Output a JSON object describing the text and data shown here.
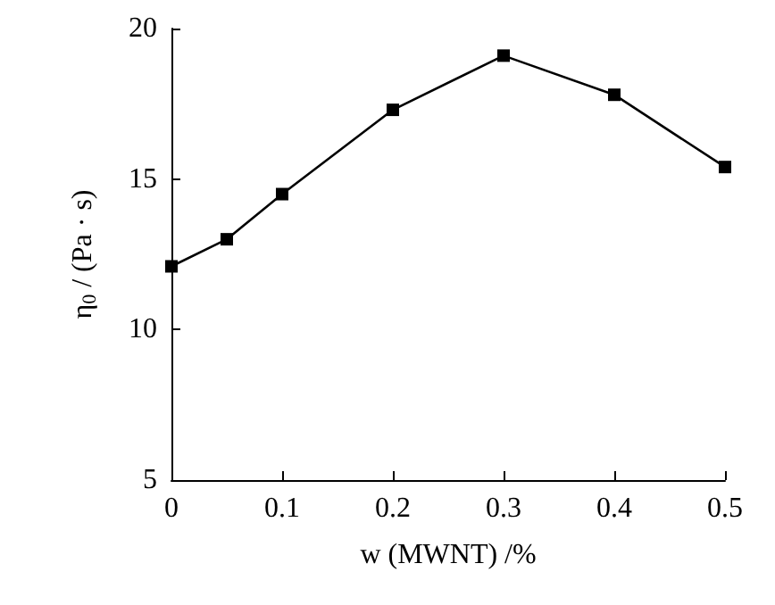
{
  "chart_data": {
    "type": "line",
    "xlabel": "w (MWNT) /%",
    "ylabel": "η$_{0}$ / (Pa · s)",
    "x": [
      0,
      0.05,
      0.1,
      0.2,
      0.3,
      0.4,
      0.5
    ],
    "values": [
      12.1,
      13.0,
      14.5,
      17.3,
      19.1,
      17.8,
      15.4
    ],
    "color": "#000000",
    "xlim": [
      0,
      0.5
    ],
    "xticks": [
      0,
      0.1,
      0.2,
      0.3,
      0.4,
      0.5
    ],
    "ylim": [
      5,
      20
    ],
    "yticks": [
      5,
      10,
      15,
      20
    ],
    "marker": "square",
    "line_style": "solid",
    "grid": false
  }
}
